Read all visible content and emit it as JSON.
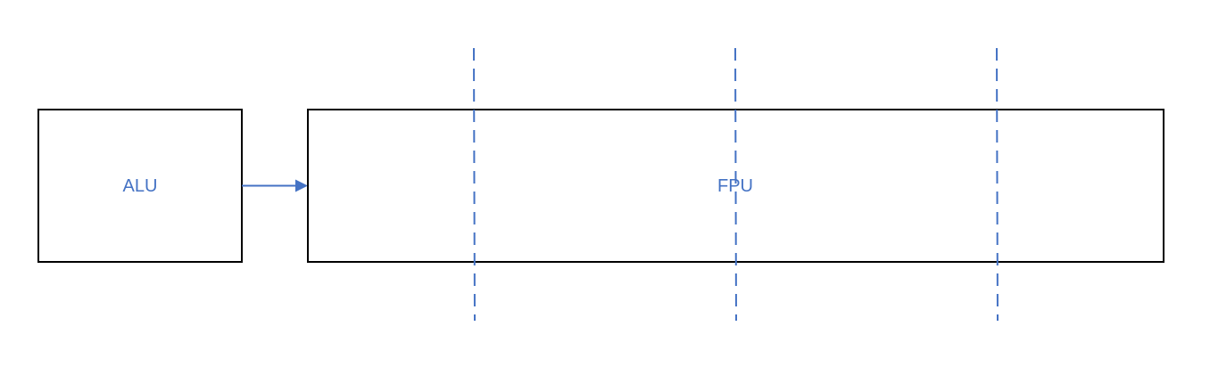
{
  "blocks": {
    "alu": {
      "label": "ALU"
    },
    "fpu": {
      "label": "FPU",
      "pipeline_dividers": 3
    }
  },
  "connections": [
    {
      "from": "ALU",
      "to": "FPU",
      "style": "arrow"
    }
  ],
  "colors": {
    "accent": "#4472c4",
    "block_border": "#000000",
    "background": "#ffffff"
  }
}
